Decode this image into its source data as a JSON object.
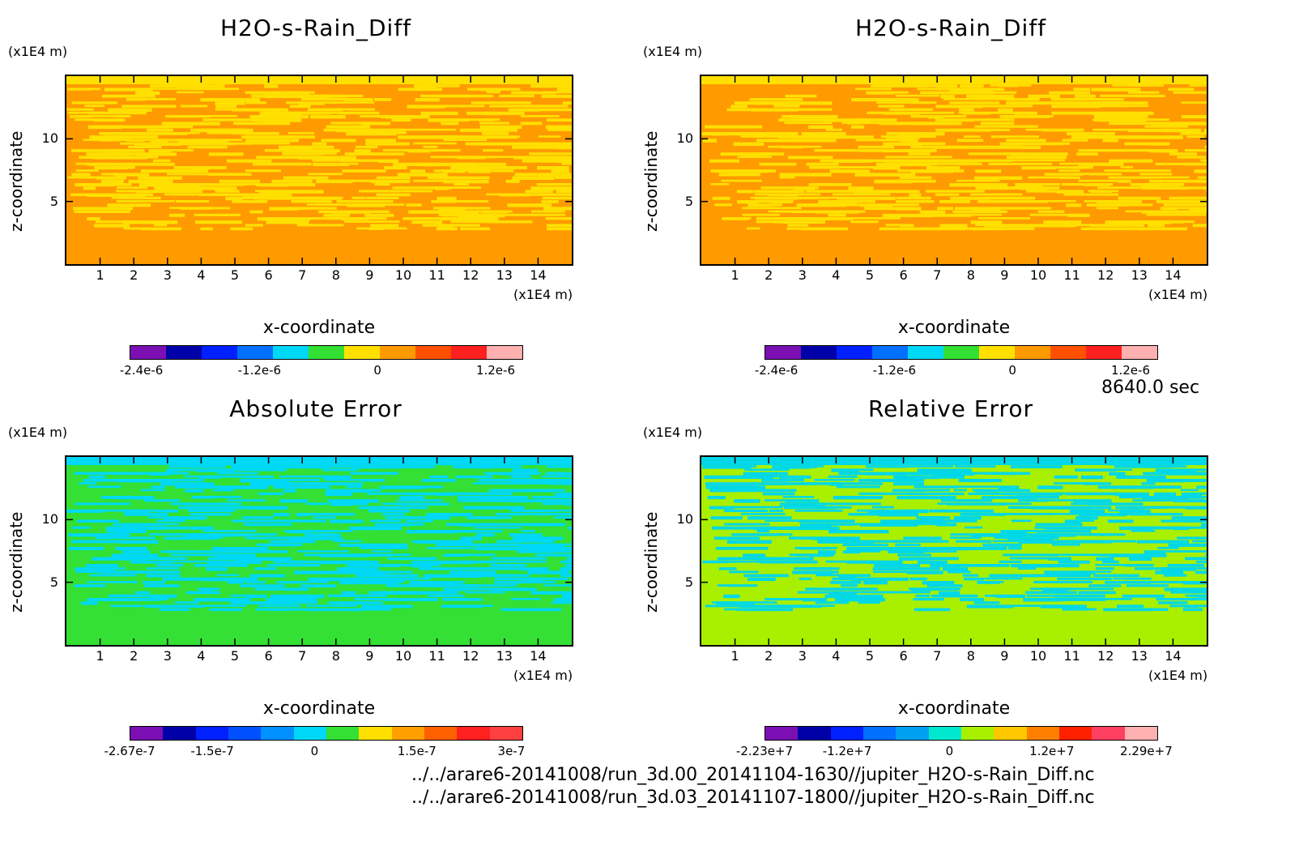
{
  "time_label": "8640.0 sec",
  "files": [
    "../../arare6-20141008/run_3d.00_20141104-1630//jupiter_H2O-s-Rain_Diff.nc",
    "../../arare6-20141008/run_3d.03_20141107-1800//jupiter_H2O-s-Rain_Diff.nc"
  ],
  "chart_data": [
    {
      "type": "heatmap",
      "title": "H2O-s-Rain_Diff",
      "xlabel": "x-coordinate",
      "ylabel": "z-coordinate",
      "x_unit": "(x1E4 m)",
      "y_unit": "(x1E4 m)",
      "xlim": [
        0,
        15
      ],
      "ylim": [
        0,
        15
      ],
      "x_ticks": [
        "1",
        "2",
        "3",
        "4",
        "5",
        "6",
        "7",
        "8",
        "9",
        "10",
        "11",
        "12",
        "13",
        "14"
      ],
      "y_ticks": [
        "5",
        "10"
      ],
      "colorbar_labels": [
        "-2.4e-6",
        "-1.2e-6",
        "0",
        "1.2e-6"
      ],
      "colorbar_colors": [
        "#7b0fb4",
        "#0000a8",
        "#0020ff",
        "#0070ff",
        "#00d8f8",
        "#33e033",
        "#ffe000",
        "#ff9a00",
        "#ff5000",
        "#ff2020",
        "#ffb0b0"
      ],
      "field_colors": [
        "#ffe000",
        "#ff9a00"
      ],
      "dominant_color": "#ff9a00"
    },
    {
      "type": "heatmap",
      "title": "H2O-s-Rain_Diff",
      "xlabel": "x-coordinate",
      "ylabel": "z-coordinate",
      "x_unit": "(x1E4 m)",
      "y_unit": "(x1E4 m)",
      "xlim": [
        0,
        15
      ],
      "ylim": [
        0,
        15
      ],
      "x_ticks": [
        "1",
        "2",
        "3",
        "4",
        "5",
        "6",
        "7",
        "8",
        "9",
        "10",
        "11",
        "12",
        "13",
        "14"
      ],
      "y_ticks": [
        "5",
        "10"
      ],
      "colorbar_labels": [
        "-2.4e-6",
        "-1.2e-6",
        "0",
        "1.2e-6"
      ],
      "colorbar_colors": [
        "#7b0fb4",
        "#0000a8",
        "#0020ff",
        "#0070ff",
        "#00d8f8",
        "#33e033",
        "#ffe000",
        "#ff9a00",
        "#ff5000",
        "#ff2020",
        "#ffb0b0"
      ],
      "field_colors": [
        "#ffe000",
        "#ff9a00"
      ],
      "dominant_color": "#ff9a00"
    },
    {
      "type": "heatmap",
      "title": "Absolute Error",
      "xlabel": "x-coordinate",
      "ylabel": "z-coordinate",
      "x_unit": "(x1E4 m)",
      "y_unit": "(x1E4 m)",
      "xlim": [
        0,
        15
      ],
      "ylim": [
        0,
        15
      ],
      "x_ticks": [
        "1",
        "2",
        "3",
        "4",
        "5",
        "6",
        "7",
        "8",
        "9",
        "10",
        "11",
        "12",
        "13",
        "14"
      ],
      "y_ticks": [
        "5",
        "10"
      ],
      "colorbar_labels": [
        "-2.67e-7",
        "-1.5e-7",
        "0",
        "1.5e-7",
        "3e-7"
      ],
      "colorbar_colors": [
        "#7b0fb4",
        "#0000a8",
        "#0020ff",
        "#0050ff",
        "#0090ff",
        "#00d8f8",
        "#33e033",
        "#ffe000",
        "#ffa000",
        "#ff6000",
        "#ff2020",
        "#ff4040"
      ],
      "field_colors": [
        "#00d8f8",
        "#33e033"
      ],
      "dominant_color": "#33e033"
    },
    {
      "type": "heatmap",
      "title": "Relative Error",
      "xlabel": "x-coordinate",
      "ylabel": "z-coordinate",
      "x_unit": "(x1E4 m)",
      "y_unit": "(x1E4 m)",
      "xlim": [
        0,
        15
      ],
      "ylim": [
        0,
        15
      ],
      "x_ticks": [
        "1",
        "2",
        "3",
        "4",
        "5",
        "6",
        "7",
        "8",
        "9",
        "10",
        "11",
        "12",
        "13",
        "14"
      ],
      "y_ticks": [
        "5",
        "10"
      ],
      "colorbar_labels": [
        "-2.23e+7",
        "-1.2e+7",
        "0",
        "1.2e+7",
        "2.29e+7"
      ],
      "colorbar_colors": [
        "#7b0fb4",
        "#0000a8",
        "#0020ff",
        "#0070ff",
        "#00a0f0",
        "#00e8d0",
        "#a8f000",
        "#ffc800",
        "#ff8000",
        "#ff2000",
        "#ff4060",
        "#ffb0b0"
      ],
      "field_colors": [
        "#00d8e8",
        "#a8f000"
      ],
      "dominant_color": "#a8f000"
    }
  ]
}
